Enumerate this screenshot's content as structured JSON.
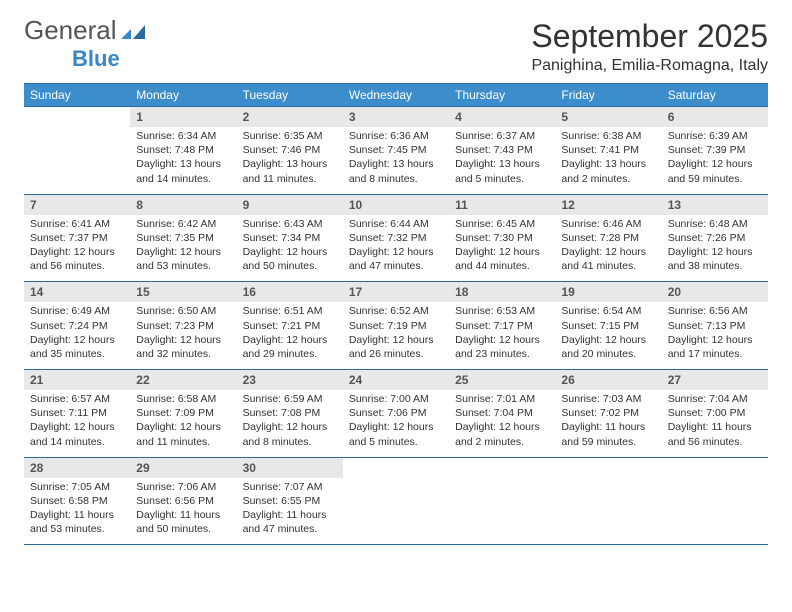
{
  "brand": {
    "word1": "General",
    "word2": "Blue"
  },
  "title": "September 2025",
  "location": "Panighina, Emilia-Romagna, Italy",
  "colors": {
    "header_bg": "#3c8dcc",
    "header_text": "#ffffff",
    "border": "#2a6aa0",
    "daynum_bg": "#e8e8e8",
    "text": "#333333",
    "logo_gray": "#555555",
    "logo_blue": "#3b86c7"
  },
  "days_of_week": [
    "Sunday",
    "Monday",
    "Tuesday",
    "Wednesday",
    "Thursday",
    "Friday",
    "Saturday"
  ],
  "weeks": [
    [
      null,
      {
        "n": "1",
        "sr": "6:34 AM",
        "ss": "7:48 PM",
        "dl": "13 hours and 14 minutes."
      },
      {
        "n": "2",
        "sr": "6:35 AM",
        "ss": "7:46 PM",
        "dl": "13 hours and 11 minutes."
      },
      {
        "n": "3",
        "sr": "6:36 AM",
        "ss": "7:45 PM",
        "dl": "13 hours and 8 minutes."
      },
      {
        "n": "4",
        "sr": "6:37 AM",
        "ss": "7:43 PM",
        "dl": "13 hours and 5 minutes."
      },
      {
        "n": "5",
        "sr": "6:38 AM",
        "ss": "7:41 PM",
        "dl": "13 hours and 2 minutes."
      },
      {
        "n": "6",
        "sr": "6:39 AM",
        "ss": "7:39 PM",
        "dl": "12 hours and 59 minutes."
      }
    ],
    [
      {
        "n": "7",
        "sr": "6:41 AM",
        "ss": "7:37 PM",
        "dl": "12 hours and 56 minutes."
      },
      {
        "n": "8",
        "sr": "6:42 AM",
        "ss": "7:35 PM",
        "dl": "12 hours and 53 minutes."
      },
      {
        "n": "9",
        "sr": "6:43 AM",
        "ss": "7:34 PM",
        "dl": "12 hours and 50 minutes."
      },
      {
        "n": "10",
        "sr": "6:44 AM",
        "ss": "7:32 PM",
        "dl": "12 hours and 47 minutes."
      },
      {
        "n": "11",
        "sr": "6:45 AM",
        "ss": "7:30 PM",
        "dl": "12 hours and 44 minutes."
      },
      {
        "n": "12",
        "sr": "6:46 AM",
        "ss": "7:28 PM",
        "dl": "12 hours and 41 minutes."
      },
      {
        "n": "13",
        "sr": "6:48 AM",
        "ss": "7:26 PM",
        "dl": "12 hours and 38 minutes."
      }
    ],
    [
      {
        "n": "14",
        "sr": "6:49 AM",
        "ss": "7:24 PM",
        "dl": "12 hours and 35 minutes."
      },
      {
        "n": "15",
        "sr": "6:50 AM",
        "ss": "7:23 PM",
        "dl": "12 hours and 32 minutes."
      },
      {
        "n": "16",
        "sr": "6:51 AM",
        "ss": "7:21 PM",
        "dl": "12 hours and 29 minutes."
      },
      {
        "n": "17",
        "sr": "6:52 AM",
        "ss": "7:19 PM",
        "dl": "12 hours and 26 minutes."
      },
      {
        "n": "18",
        "sr": "6:53 AM",
        "ss": "7:17 PM",
        "dl": "12 hours and 23 minutes."
      },
      {
        "n": "19",
        "sr": "6:54 AM",
        "ss": "7:15 PM",
        "dl": "12 hours and 20 minutes."
      },
      {
        "n": "20",
        "sr": "6:56 AM",
        "ss": "7:13 PM",
        "dl": "12 hours and 17 minutes."
      }
    ],
    [
      {
        "n": "21",
        "sr": "6:57 AM",
        "ss": "7:11 PM",
        "dl": "12 hours and 14 minutes."
      },
      {
        "n": "22",
        "sr": "6:58 AM",
        "ss": "7:09 PM",
        "dl": "12 hours and 11 minutes."
      },
      {
        "n": "23",
        "sr": "6:59 AM",
        "ss": "7:08 PM",
        "dl": "12 hours and 8 minutes."
      },
      {
        "n": "24",
        "sr": "7:00 AM",
        "ss": "7:06 PM",
        "dl": "12 hours and 5 minutes."
      },
      {
        "n": "25",
        "sr": "7:01 AM",
        "ss": "7:04 PM",
        "dl": "12 hours and 2 minutes."
      },
      {
        "n": "26",
        "sr": "7:03 AM",
        "ss": "7:02 PM",
        "dl": "11 hours and 59 minutes."
      },
      {
        "n": "27",
        "sr": "7:04 AM",
        "ss": "7:00 PM",
        "dl": "11 hours and 56 minutes."
      }
    ],
    [
      {
        "n": "28",
        "sr": "7:05 AM",
        "ss": "6:58 PM",
        "dl": "11 hours and 53 minutes."
      },
      {
        "n": "29",
        "sr": "7:06 AM",
        "ss": "6:56 PM",
        "dl": "11 hours and 50 minutes."
      },
      {
        "n": "30",
        "sr": "7:07 AM",
        "ss": "6:55 PM",
        "dl": "11 hours and 47 minutes."
      },
      null,
      null,
      null,
      null
    ]
  ],
  "labels": {
    "sunrise": "Sunrise:",
    "sunset": "Sunset:",
    "daylight": "Daylight:"
  }
}
